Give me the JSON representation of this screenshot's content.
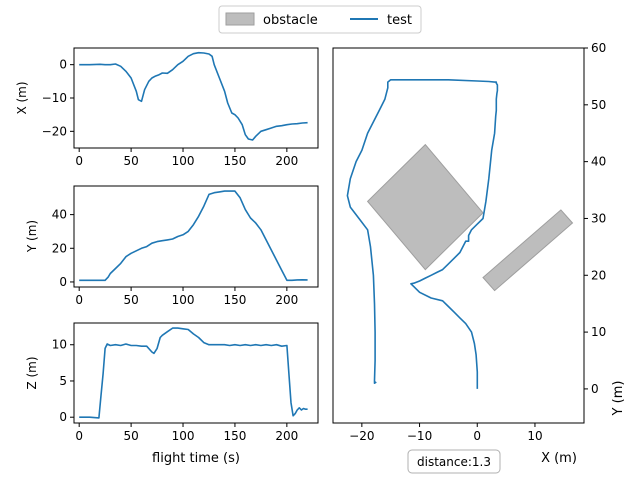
{
  "legend": {
    "obstacle_label": "obstacle",
    "test_label": "test",
    "position": "upper-center"
  },
  "annotation": {
    "text": "distance:1.3"
  },
  "colors": {
    "line": "#1f77b4",
    "obstacle_fill": "#bdbdbd",
    "obstacle_edge": "#9e9e9e"
  },
  "chart_data": [
    {
      "type": "line",
      "xlabel": "",
      "ylabel": "X (m)",
      "xlim": [
        -5,
        230
      ],
      "ylim": [
        -25,
        5
      ],
      "xticks": [
        0,
        50,
        100,
        150,
        200
      ],
      "yticks": [
        -20,
        -10,
        0
      ],
      "series": [
        {
          "name": "test",
          "x": [
            0,
            10,
            20,
            25,
            30,
            35,
            40,
            45,
            50,
            55,
            57,
            60,
            63,
            67,
            70,
            73,
            77,
            80,
            85,
            90,
            95,
            100,
            105,
            110,
            115,
            120,
            125,
            128,
            130,
            135,
            140,
            143,
            147,
            150,
            153,
            157,
            160,
            163,
            167,
            170,
            175,
            180,
            185,
            190,
            195,
            200,
            205,
            210,
            215,
            220
          ],
          "y": [
            0,
            0,
            0.1,
            0,
            0,
            0.2,
            -0.5,
            -2,
            -4,
            -8,
            -10.5,
            -11,
            -7.5,
            -5,
            -4,
            -3.5,
            -3,
            -2.5,
            -2.6,
            -1.5,
            0,
            1,
            2.5,
            3.3,
            3.6,
            3.5,
            3.2,
            2.5,
            0,
            -4,
            -8,
            -11.5,
            -14.5,
            -15,
            -16,
            -18,
            -21,
            -22.3,
            -22.6,
            -21.5,
            -20,
            -19.5,
            -19,
            -18.5,
            -18.3,
            -18,
            -17.8,
            -17.7,
            -17.5,
            -17.4
          ]
        }
      ]
    },
    {
      "type": "line",
      "xlabel": "",
      "ylabel": "Y (m)",
      "xlim": [
        -5,
        230
      ],
      "ylim": [
        -3,
        57
      ],
      "xticks": [
        0,
        50,
        100,
        150,
        200
      ],
      "yticks": [
        0,
        20,
        40
      ],
      "series": [
        {
          "name": "test",
          "x": [
            0,
            10,
            20,
            25,
            28,
            30,
            35,
            40,
            45,
            50,
            55,
            60,
            65,
            70,
            75,
            80,
            85,
            90,
            95,
            100,
            105,
            110,
            115,
            120,
            125,
            130,
            135,
            140,
            145,
            150,
            155,
            160,
            165,
            170,
            175,
            180,
            185,
            190,
            195,
            200,
            205,
            210,
            215,
            220
          ],
          "y": [
            1,
            1,
            1,
            1,
            3,
            5,
            8,
            11,
            15,
            17,
            18.5,
            20,
            21,
            23,
            24,
            24.5,
            25,
            25.5,
            27,
            28,
            30,
            34,
            39,
            45,
            52,
            53,
            53.5,
            54,
            54,
            54,
            50,
            43,
            38,
            35,
            31,
            25,
            19,
            13,
            7,
            1,
            1,
            1.2,
            1.3,
            1.2
          ]
        }
      ]
    },
    {
      "type": "line",
      "xlabel": "flight time (s)",
      "ylabel": "Z (m)",
      "xlim": [
        -5,
        230
      ],
      "ylim": [
        -0.8,
        13
      ],
      "xticks": [
        0,
        50,
        100,
        150,
        200
      ],
      "yticks": [
        0,
        5,
        10
      ],
      "series": [
        {
          "name": "test",
          "x": [
            0,
            10,
            19,
            21,
            23,
            25,
            27,
            30,
            35,
            40,
            45,
            50,
            55,
            60,
            65,
            70,
            72,
            75,
            78,
            80,
            85,
            90,
            95,
            100,
            105,
            110,
            115,
            120,
            125,
            130,
            135,
            140,
            145,
            150,
            155,
            160,
            165,
            170,
            175,
            180,
            185,
            190,
            195,
            200,
            202,
            204,
            206,
            208,
            210,
            212,
            214,
            216,
            218,
            220
          ],
          "y": [
            0,
            0,
            -0.1,
            3,
            6,
            9.5,
            10.1,
            9.9,
            10,
            9.9,
            10.1,
            9.9,
            9.9,
            9.8,
            9.8,
            9,
            8.8,
            9.5,
            11,
            11.3,
            11.8,
            12.3,
            12.3,
            12.2,
            12.1,
            11.5,
            11,
            10.3,
            10,
            10,
            10,
            10,
            9.9,
            10,
            9.9,
            10,
            9.9,
            10,
            9.9,
            10,
            9.9,
            10,
            9.8,
            9.9,
            6,
            2,
            0.2,
            0.5,
            1,
            1.3,
            1,
            1.2,
            1.1,
            1.1
          ]
        }
      ]
    },
    {
      "type": "line",
      "xlabel": "X (m)",
      "ylabel": "Y (m)",
      "xlim": [
        -25,
        18.5
      ],
      "ylim": [
        -6,
        60
      ],
      "xticks": [
        -20,
        -10,
        0,
        10
      ],
      "yticks": [
        0,
        10,
        20,
        30,
        40,
        50,
        60
      ],
      "y_axis_side": "right",
      "obstacles": [
        {
          "name": "obstacle",
          "polygon": [
            [
              -9,
              43
            ],
            [
              1,
              31
            ],
            [
              -9,
              21
            ],
            [
              -19,
              33
            ]
          ]
        },
        {
          "name": "obstacle",
          "polygon": [
            [
              14.5,
              31.5
            ],
            [
              16.5,
              29.2
            ],
            [
              3,
              17.3
            ],
            [
              1,
              19.6
            ]
          ]
        }
      ],
      "series": [
        {
          "name": "test",
          "x": [
            0,
            0,
            -0.2,
            -0.5,
            -1,
            -2,
            -3,
            -4,
            -5,
            -6,
            -8,
            -10,
            -11,
            -11.5,
            -11,
            -10,
            -9,
            -8,
            -7,
            -6,
            -5,
            -4,
            -3,
            -2.5,
            -2,
            -1.5,
            -1.5,
            -1,
            0,
            1,
            1.5,
            2,
            2.5,
            3,
            3.2,
            3.3,
            3.3,
            3.4,
            3.5,
            3.5,
            3.3,
            3.3,
            3,
            2,
            0,
            -5,
            -10,
            -15,
            -15.5,
            -15.5,
            -16,
            -17,
            -18,
            -19,
            -20,
            -21,
            -22,
            -22.5,
            -22,
            -20.5,
            -19,
            -18.5,
            -18,
            -17.8,
            -17.7,
            -17.7,
            -17.8,
            -17.8,
            -17.5
          ],
          "y": [
            0,
            3,
            6,
            8,
            10,
            11.5,
            12.5,
            13.5,
            14.5,
            15.5,
            16,
            17,
            18,
            18.5,
            18.6,
            19,
            19.5,
            20,
            20.5,
            21,
            22,
            23,
            24,
            25,
            26,
            26,
            27,
            28,
            29,
            30,
            33,
            37,
            42,
            45,
            48,
            49,
            51,
            52,
            52.5,
            53.5,
            53.8,
            54,
            54,
            54.1,
            54.2,
            54.4,
            54.4,
            54.4,
            54,
            53,
            51,
            49,
            47,
            45,
            42,
            40,
            37,
            34,
            32,
            30,
            28,
            25,
            20,
            15,
            10,
            5,
            1.5,
            1,
            1.2
          ]
        }
      ]
    }
  ]
}
